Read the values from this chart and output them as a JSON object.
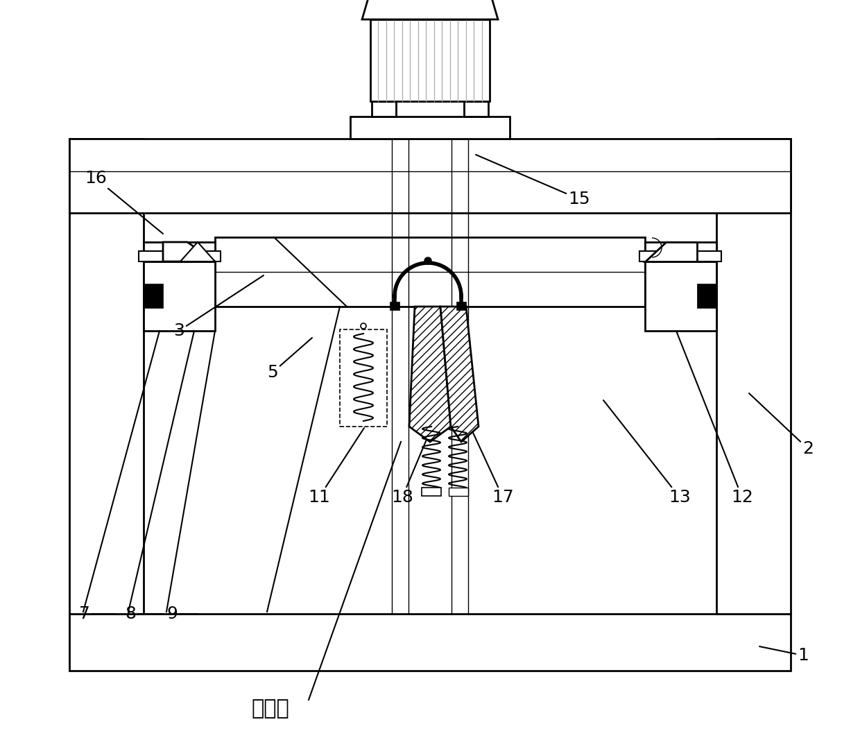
{
  "bg_color": "#ffffff",
  "lc": "#000000",
  "gray": "#888888",
  "title": "连接件",
  "figsize": [
    12.4,
    10.77
  ],
  "dpi": 100,
  "lw_main": 2.0,
  "lw_med": 1.5,
  "lw_thin": 1.0
}
